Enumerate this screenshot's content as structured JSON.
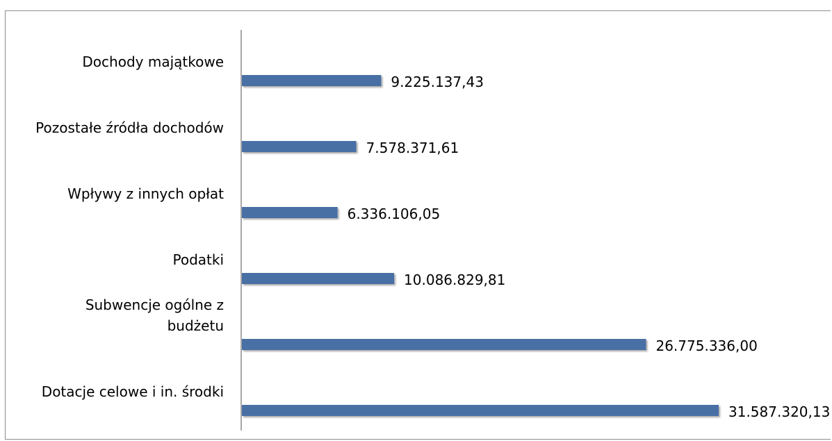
{
  "chart_data": {
    "type": "bar",
    "orientation": "horizontal",
    "categories": [
      [
        "Dochody majątkowe"
      ],
      [
        "Pozostałe źródła dochodów"
      ],
      [
        "Wpływy z innych opłat"
      ],
      [
        "Podatki"
      ],
      [
        "Subwencje ogólne z",
        "budżetu"
      ],
      [
        "Dotacje celowe i in. środki"
      ]
    ],
    "values": [
      9225137.43,
      7578371.61,
      6336106.05,
      10086829.81,
      26775336.0,
      31587320.13
    ],
    "value_labels": [
      "9.225.137,43",
      "7.578.371,61",
      "6.336.106,05",
      "10.086.829,81",
      "26.775.336,00",
      "31.587.320,13"
    ],
    "bar_color": "#4a6fa5",
    "xlim": [
      0,
      31587320.13
    ],
    "grid": false,
    "legend": "none"
  }
}
